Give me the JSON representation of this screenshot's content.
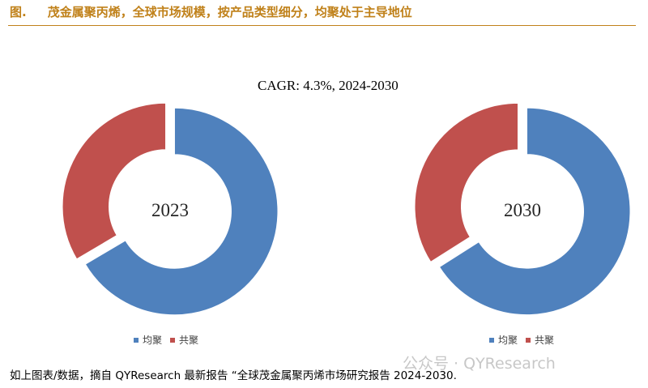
{
  "header": {
    "figure_label": "图.",
    "title": "茂金属聚丙烯，全球市场规模，按产品类型细分，均聚处于主导地位"
  },
  "annotation": {
    "cagr": "CAGR:  4.3%, 2024-2030"
  },
  "colors": {
    "homopolymer": "#4f81bd",
    "copolymer": "#c0504d",
    "header_accent": "#c0811a"
  },
  "chart_data": [
    {
      "type": "pie",
      "variant": "donut",
      "center_label": "2023",
      "categories": [
        "均聚",
        "共聚"
      ],
      "values": [
        66.5,
        33.5
      ],
      "legend_placement": "bottom",
      "exploded": true
    },
    {
      "type": "pie",
      "variant": "donut",
      "center_label": "2030",
      "categories": [
        "均聚",
        "共聚"
      ],
      "values": [
        66.0,
        34.0
      ],
      "legend_placement": "bottom",
      "exploded": true
    }
  ],
  "footer": {
    "source_note": "如上图表/数据，摘自 QYResearch 最新报告 “全球茂金属聚丙烯市场研究报告 2024-2030.",
    "watermark": "公众号 · QYResearch"
  }
}
